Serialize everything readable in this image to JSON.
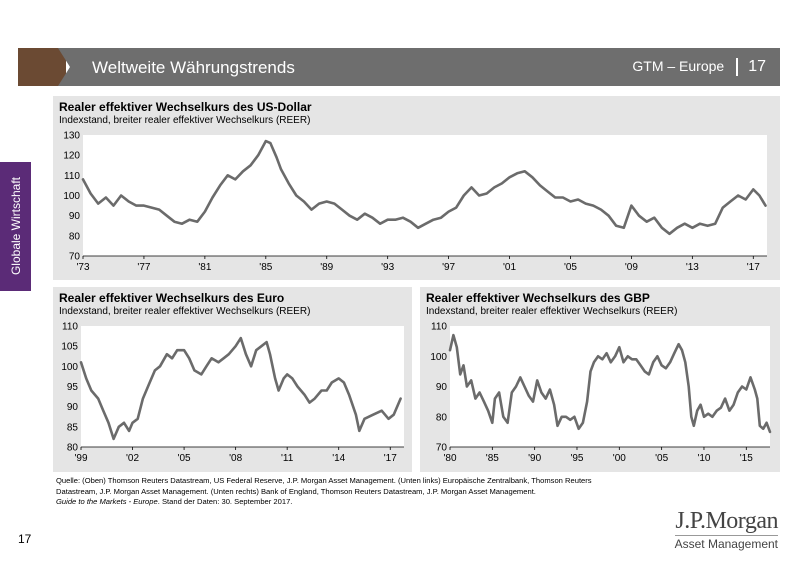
{
  "header": {
    "title": "Weltweite Währungstrends",
    "section": "GTM – Europe",
    "page": "17"
  },
  "sidebar": {
    "label": "Globale Wirtschaft"
  },
  "panels": {
    "usd": {
      "title": "Realer effektiver Wechselkurs des US-Dollar",
      "subtitle": "Indexstand, breiter realer effektiver Wechselkurs (REER)"
    },
    "eur": {
      "title": "Realer effektiver Wechselkurs des Euro",
      "subtitle": "Indexstand, breiter realer effektiver Wechselkurs (REER)"
    },
    "gbp": {
      "title": "Realer effektiver Wechselkurs des GBP",
      "subtitle": "Indexstand, breiter realer effektiver Wechselkurs (REER)"
    }
  },
  "footnote": {
    "line1": "Quelle: (Oben) Thomson Reuters Datastream, US Federal Reserve, J.P. Morgan Asset Management. (Unten links) Europäische Zentralbank, Thomson Reuters",
    "line2": "Datastream, J.P. Morgan Asset Management. (Unten rechts) Bank of England, Thomson Reuters Datastream, J.P. Morgan Asset Management.",
    "guide": "Guide to the Markets - Europe",
    "line3": ". Stand der Daten: 30. September 2017."
  },
  "page_number": "17",
  "logo": {
    "name": "J.P.Morgan",
    "sub": "Asset Management"
  },
  "colors": {
    "line": "#6b6b6b",
    "panel_bg": "#e5e5e5",
    "header_bar": "#6e6e6e",
    "header_accent": "#6b4a33",
    "side_tab": "#5b2b77"
  },
  "chart_data": [
    {
      "type": "line",
      "title": "Realer effektiver Wechselkurs des US-Dollar",
      "subtitle": "Indexstand, breiter realer effektiver Wechselkurs (REER)",
      "ylim": [
        70,
        130
      ],
      "yticks": [
        70,
        80,
        90,
        100,
        110,
        120,
        130
      ],
      "xlim": [
        1973,
        2017.9
      ],
      "xticks": [
        1973,
        1977,
        1981,
        1985,
        1989,
        1993,
        1997,
        2001,
        2005,
        2009,
        2013,
        2017
      ],
      "xtick_labels": [
        "'73",
        "'77",
        "'81",
        "'85",
        "'89",
        "'93",
        "'97",
        "'01",
        "'05",
        "'09",
        "'13",
        "'17"
      ],
      "grid": false,
      "series": [
        {
          "points": [
            [
              1973.0,
              108
            ],
            [
              1973.5,
              101
            ],
            [
              1974.0,
              96
            ],
            [
              1974.5,
              99
            ],
            [
              1975.0,
              95
            ],
            [
              1975.5,
              100
            ],
            [
              1976.0,
              97
            ],
            [
              1976.5,
              95
            ],
            [
              1977.0,
              95
            ],
            [
              1977.5,
              94
            ],
            [
              1978.0,
              93
            ],
            [
              1978.5,
              90
            ],
            [
              1979.0,
              87
            ],
            [
              1979.5,
              86
            ],
            [
              1980.0,
              88
            ],
            [
              1980.5,
              87
            ],
            [
              1981.0,
              92
            ],
            [
              1981.5,
              99
            ],
            [
              1982.0,
              105
            ],
            [
              1982.5,
              110
            ],
            [
              1983.0,
              108
            ],
            [
              1983.5,
              112
            ],
            [
              1984.0,
              115
            ],
            [
              1984.5,
              120
            ],
            [
              1985.0,
              127
            ],
            [
              1985.3,
              126
            ],
            [
              1985.7,
              119
            ],
            [
              1986.0,
              113
            ],
            [
              1986.5,
              106
            ],
            [
              1987.0,
              100
            ],
            [
              1987.5,
              97
            ],
            [
              1988.0,
              93
            ],
            [
              1988.5,
              96
            ],
            [
              1989.0,
              97
            ],
            [
              1989.5,
              96
            ],
            [
              1990.0,
              93
            ],
            [
              1990.5,
              90
            ],
            [
              1991.0,
              88
            ],
            [
              1991.5,
              91
            ],
            [
              1992.0,
              89
            ],
            [
              1992.5,
              86
            ],
            [
              1993.0,
              88
            ],
            [
              1993.5,
              88
            ],
            [
              1994.0,
              89
            ],
            [
              1994.5,
              87
            ],
            [
              1995.0,
              84
            ],
            [
              1995.5,
              86
            ],
            [
              1996.0,
              88
            ],
            [
              1996.5,
              89
            ],
            [
              1997.0,
              92
            ],
            [
              1997.5,
              94
            ],
            [
              1998.0,
              100
            ],
            [
              1998.5,
              104
            ],
            [
              1999.0,
              100
            ],
            [
              1999.5,
              101
            ],
            [
              2000.0,
              104
            ],
            [
              2000.5,
              106
            ],
            [
              2001.0,
              109
            ],
            [
              2001.5,
              111
            ],
            [
              2002.0,
              112
            ],
            [
              2002.5,
              109
            ],
            [
              2003.0,
              105
            ],
            [
              2003.5,
              102
            ],
            [
              2004.0,
              99
            ],
            [
              2004.5,
              99
            ],
            [
              2005.0,
              97
            ],
            [
              2005.5,
              98
            ],
            [
              2006.0,
              96
            ],
            [
              2006.5,
              95
            ],
            [
              2007.0,
              93
            ],
            [
              2007.5,
              90
            ],
            [
              2008.0,
              85
            ],
            [
              2008.5,
              84
            ],
            [
              2009.0,
              95
            ],
            [
              2009.5,
              90
            ],
            [
              2010.0,
              87
            ],
            [
              2010.5,
              89
            ],
            [
              2011.0,
              84
            ],
            [
              2011.5,
              81
            ],
            [
              2012.0,
              84
            ],
            [
              2012.5,
              86
            ],
            [
              2013.0,
              84
            ],
            [
              2013.5,
              86
            ],
            [
              2014.0,
              85
            ],
            [
              2014.5,
              86
            ],
            [
              2015.0,
              94
            ],
            [
              2015.5,
              97
            ],
            [
              2016.0,
              100
            ],
            [
              2016.5,
              98
            ],
            [
              2017.0,
              103
            ],
            [
              2017.4,
              100
            ],
            [
              2017.8,
              95
            ]
          ]
        }
      ]
    },
    {
      "type": "line",
      "title": "Realer effektiver Wechselkurs des Euro",
      "subtitle": "Indexstand, breiter realer effektiver Wechselkurs (REER)",
      "ylim": [
        80,
        110
      ],
      "yticks": [
        80,
        85,
        90,
        95,
        100,
        105,
        110
      ],
      "xlim": [
        1999,
        2017.8
      ],
      "xticks": [
        1999,
        2002,
        2005,
        2008,
        2011,
        2014,
        2017
      ],
      "xtick_labels": [
        "'99",
        "'02",
        "'05",
        "'08",
        "'11",
        "'14",
        "'17"
      ],
      "grid": false,
      "series": [
        {
          "points": [
            [
              1999.0,
              101
            ],
            [
              1999.3,
              97
            ],
            [
              1999.6,
              94
            ],
            [
              2000.0,
              92
            ],
            [
              2000.3,
              89
            ],
            [
              2000.6,
              86
            ],
            [
              2000.9,
              82
            ],
            [
              2001.2,
              85
            ],
            [
              2001.5,
              86
            ],
            [
              2001.8,
              84
            ],
            [
              2002.0,
              86
            ],
            [
              2002.3,
              87
            ],
            [
              2002.6,
              92
            ],
            [
              2003.0,
              96
            ],
            [
              2003.3,
              99
            ],
            [
              2003.6,
              100
            ],
            [
              2004.0,
              103
            ],
            [
              2004.3,
              102
            ],
            [
              2004.6,
              104
            ],
            [
              2005.0,
              104
            ],
            [
              2005.3,
              102
            ],
            [
              2005.6,
              99
            ],
            [
              2006.0,
              98
            ],
            [
              2006.3,
              100
            ],
            [
              2006.6,
              102
            ],
            [
              2007.0,
              101
            ],
            [
              2007.3,
              102
            ],
            [
              2007.6,
              103
            ],
            [
              2008.0,
              105
            ],
            [
              2008.3,
              107
            ],
            [
              2008.6,
              103
            ],
            [
              2008.9,
              100
            ],
            [
              2009.2,
              104
            ],
            [
              2009.5,
              105
            ],
            [
              2009.8,
              106
            ],
            [
              2010.0,
              103
            ],
            [
              2010.3,
              97
            ],
            [
              2010.5,
              94
            ],
            [
              2010.8,
              97
            ],
            [
              2011.0,
              98
            ],
            [
              2011.3,
              97
            ],
            [
              2011.6,
              95
            ],
            [
              2012.0,
              93
            ],
            [
              2012.3,
              91
            ],
            [
              2012.6,
              92
            ],
            [
              2013.0,
              94
            ],
            [
              2013.3,
              94
            ],
            [
              2013.6,
              96
            ],
            [
              2014.0,
              97
            ],
            [
              2014.3,
              96
            ],
            [
              2014.6,
              93
            ],
            [
              2015.0,
              88
            ],
            [
              2015.2,
              84
            ],
            [
              2015.5,
              87
            ],
            [
              2016.0,
              88
            ],
            [
              2016.5,
              89
            ],
            [
              2016.9,
              87
            ],
            [
              2017.2,
              88
            ],
            [
              2017.6,
              92
            ]
          ]
        }
      ]
    },
    {
      "type": "line",
      "title": "Realer effektiver Wechselkurs des GBP",
      "subtitle": "Indexstand, breiter realer effektiver Wechselkurs (REER)",
      "ylim": [
        70,
        110
      ],
      "yticks": [
        70,
        80,
        90,
        100,
        110
      ],
      "xlim": [
        1980,
        2017.8
      ],
      "xticks": [
        1980,
        1985,
        1990,
        1995,
        2000,
        2005,
        2010,
        2015
      ],
      "xtick_labels": [
        "'80",
        "'85",
        "'90",
        "'95",
        "'00",
        "'05",
        "'10",
        "'15"
      ],
      "grid": false,
      "series": [
        {
          "points": [
            [
              1980.0,
              102
            ],
            [
              1980.4,
              107
            ],
            [
              1980.8,
              103
            ],
            [
              1981.2,
              94
            ],
            [
              1981.6,
              97
            ],
            [
              1982.0,
              90
            ],
            [
              1982.5,
              92
            ],
            [
              1983.0,
              86
            ],
            [
              1983.5,
              88
            ],
            [
              1984.0,
              85
            ],
            [
              1984.5,
              82
            ],
            [
              1985.0,
              78
            ],
            [
              1985.3,
              86
            ],
            [
              1985.8,
              88
            ],
            [
              1986.3,
              80
            ],
            [
              1986.8,
              78
            ],
            [
              1987.3,
              88
            ],
            [
              1987.8,
              90
            ],
            [
              1988.3,
              93
            ],
            [
              1988.8,
              90
            ],
            [
              1989.3,
              87
            ],
            [
              1989.8,
              85
            ],
            [
              1990.3,
              92
            ],
            [
              1990.8,
              88
            ],
            [
              1991.3,
              86
            ],
            [
              1991.8,
              89
            ],
            [
              1992.3,
              84
            ],
            [
              1992.7,
              77
            ],
            [
              1993.2,
              80
            ],
            [
              1993.7,
              80
            ],
            [
              1994.2,
              79
            ],
            [
              1994.7,
              80
            ],
            [
              1995.2,
              76
            ],
            [
              1995.7,
              78
            ],
            [
              1996.2,
              85
            ],
            [
              1996.6,
              95
            ],
            [
              1997.0,
              98
            ],
            [
              1997.5,
              100
            ],
            [
              1998.0,
              99
            ],
            [
              1998.5,
              101
            ],
            [
              1999.0,
              98
            ],
            [
              1999.5,
              100
            ],
            [
              2000.0,
              103
            ],
            [
              2000.5,
              98
            ],
            [
              2001.0,
              100
            ],
            [
              2001.5,
              99
            ],
            [
              2002.0,
              99
            ],
            [
              2002.5,
              97
            ],
            [
              2003.0,
              95
            ],
            [
              2003.5,
              94
            ],
            [
              2004.0,
              98
            ],
            [
              2004.5,
              100
            ],
            [
              2005.0,
              97
            ],
            [
              2005.5,
              96
            ],
            [
              2006.0,
              98
            ],
            [
              2006.5,
              101
            ],
            [
              2007.0,
              104
            ],
            [
              2007.4,
              102
            ],
            [
              2007.8,
              98
            ],
            [
              2008.2,
              90
            ],
            [
              2008.5,
              80
            ],
            [
              2008.8,
              77
            ],
            [
              2009.2,
              82
            ],
            [
              2009.6,
              84
            ],
            [
              2010.0,
              80
            ],
            [
              2010.5,
              81
            ],
            [
              2011.0,
              80
            ],
            [
              2011.5,
              82
            ],
            [
              2012.0,
              83
            ],
            [
              2012.5,
              86
            ],
            [
              2013.0,
              82
            ],
            [
              2013.5,
              84
            ],
            [
              2014.0,
              88
            ],
            [
              2014.5,
              90
            ],
            [
              2015.0,
              89
            ],
            [
              2015.5,
              93
            ],
            [
              2016.0,
              89
            ],
            [
              2016.3,
              86
            ],
            [
              2016.6,
              77
            ],
            [
              2017.0,
              76
            ],
            [
              2017.4,
              78
            ],
            [
              2017.8,
              75
            ]
          ]
        }
      ]
    }
  ]
}
